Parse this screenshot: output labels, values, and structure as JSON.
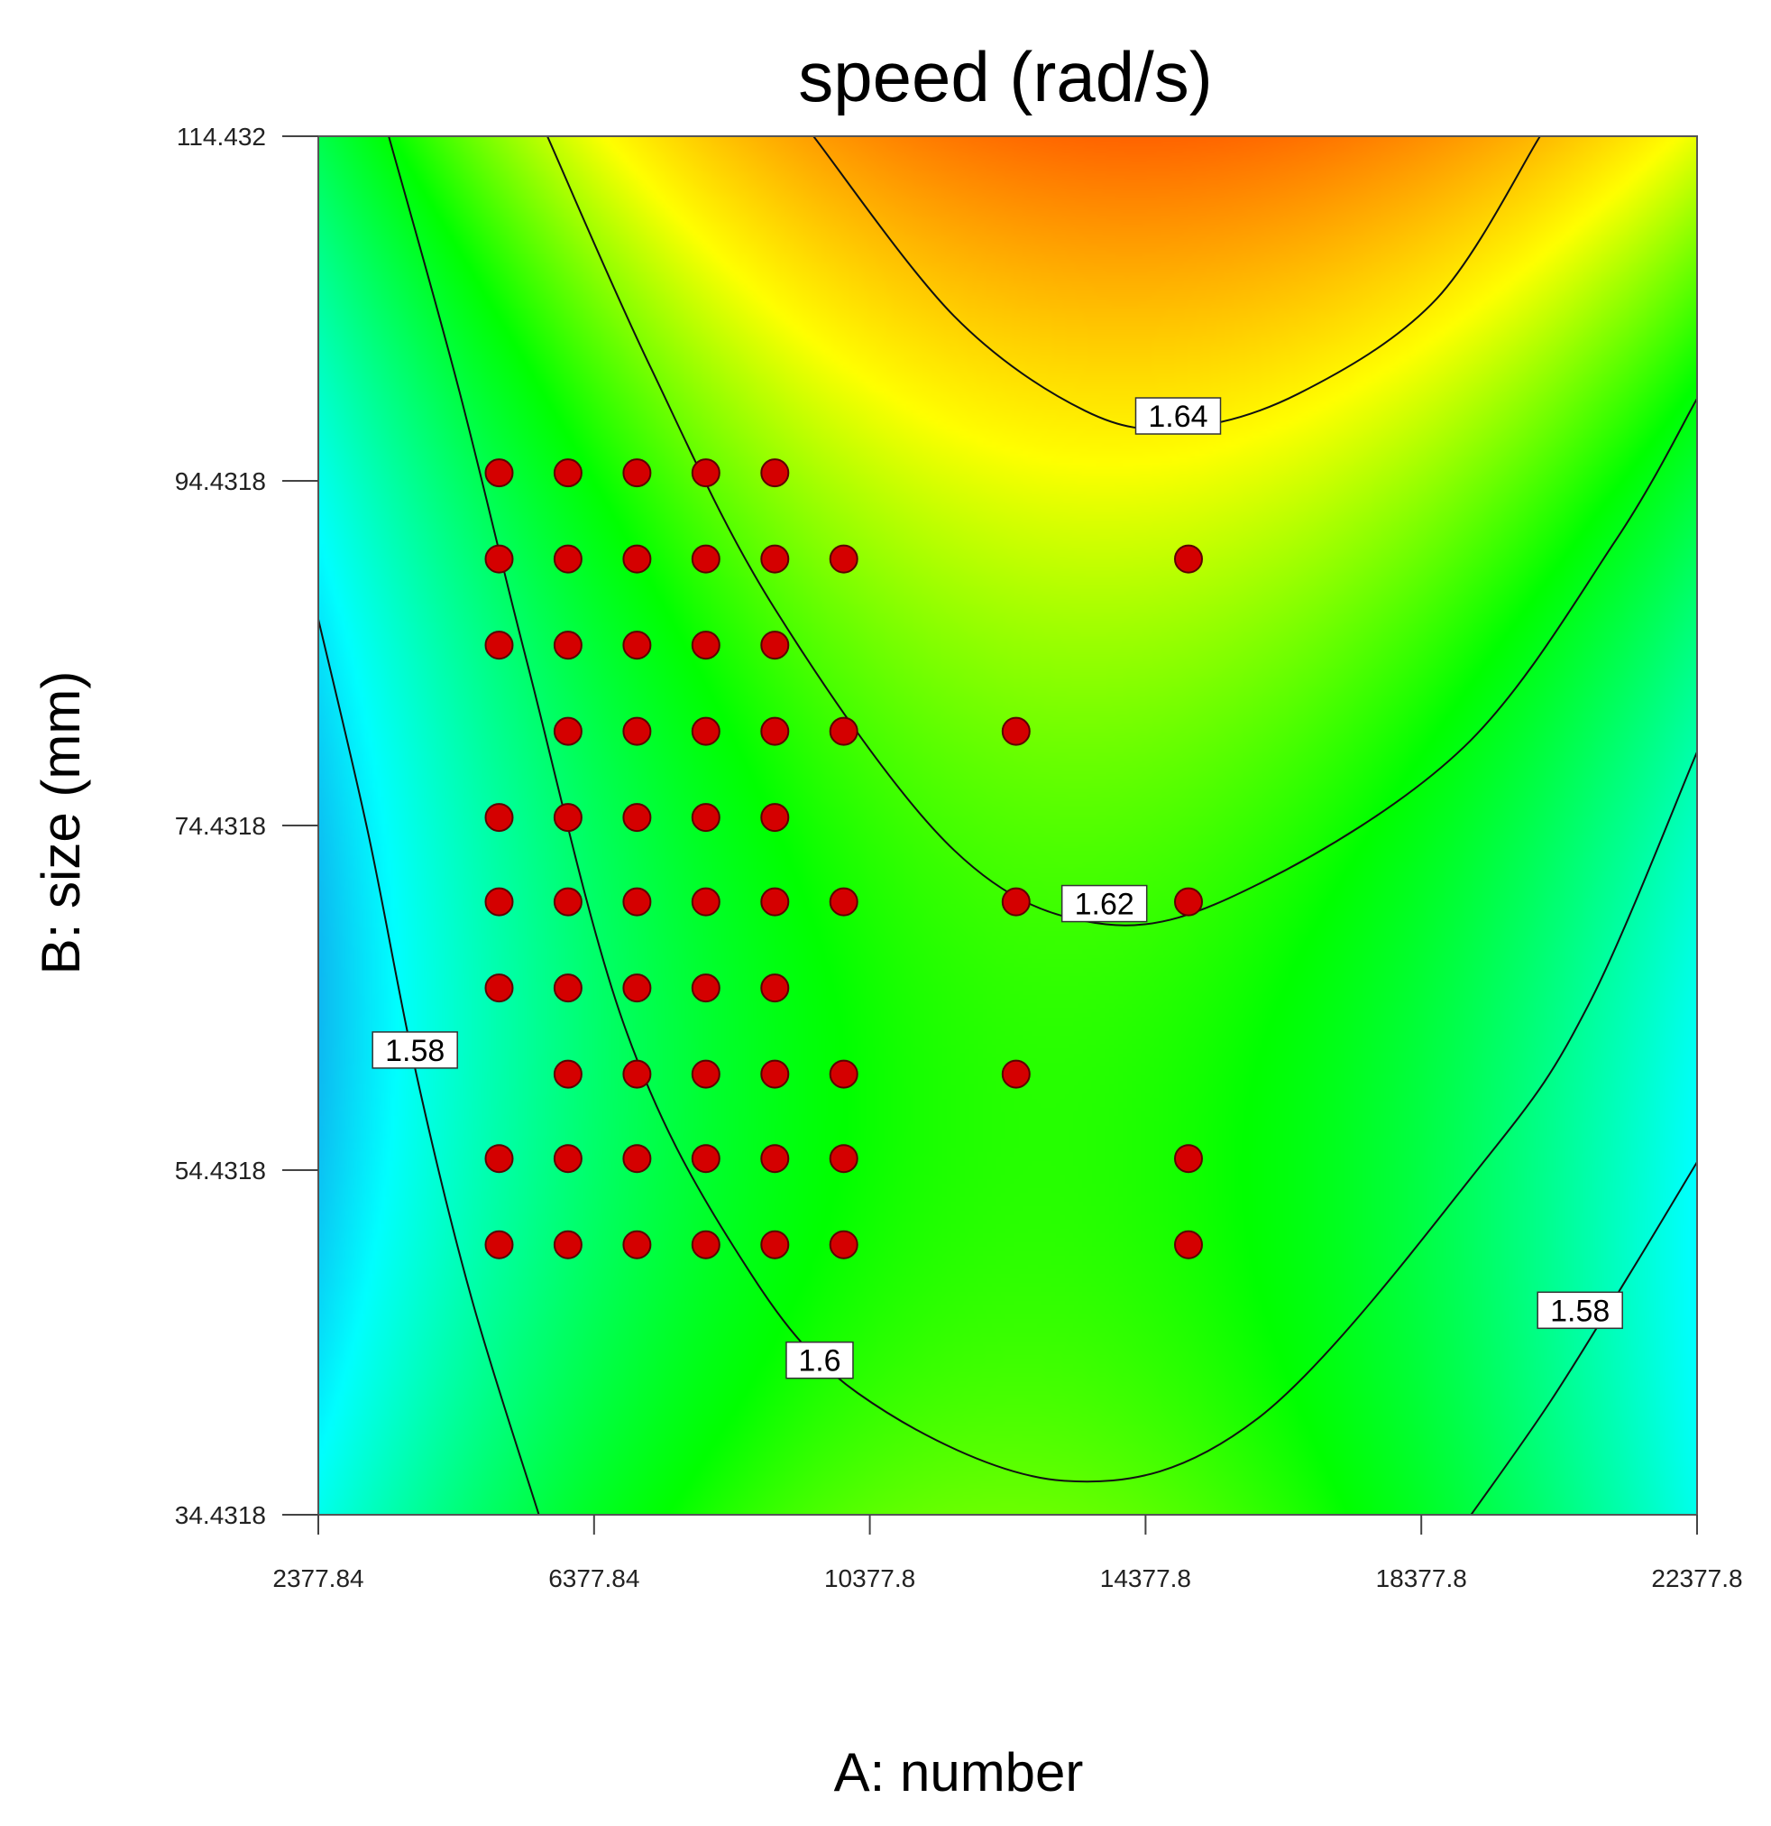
{
  "chart_data": {
    "type": "contour",
    "title": "speed (rad/s)",
    "xlabel": "A: number",
    "ylabel": "B: size (mm)",
    "xlim": [
      2377.84,
      22377.8
    ],
    "ylim": [
      34.4318,
      114.432
    ],
    "x_ticks": [
      "2377.84",
      "6377.84",
      "10377.8",
      "14377.8",
      "18377.8",
      "22377.8"
    ],
    "y_ticks": [
      "34.4318",
      "54.4318",
      "74.4318",
      "94.4318",
      "114.432"
    ],
    "x_tick_values": [
      2377.84,
      6377.84,
      10377.8,
      14377.8,
      18377.8,
      22377.8
    ],
    "y_tick_values": [
      34.4318,
      54.4318,
      74.4318,
      94.4318,
      114.432
    ],
    "color_scale": [
      "#1f5fe0",
      "#00ffff",
      "#00ff00",
      "#ffff00",
      "#ff8800",
      "#ff0000"
    ],
    "grid": false,
    "contours": [
      {
        "label": "1.58",
        "label_at": [
          3780,
          61.4
        ],
        "points": [
          [
            2377.84,
            86.4
          ],
          [
            3100,
            74
          ],
          [
            3800,
            60
          ],
          [
            4600,
            47
          ],
          [
            5577,
            34.4318
          ]
        ]
      },
      {
        "label": "1.58",
        "label_at": [
          20680,
          46.3
        ],
        "points": [
          [
            22377.8,
            54.9
          ],
          [
            21400,
            48.4
          ],
          [
            20250,
            41
          ],
          [
            19100,
            34.4318
          ]
        ]
      },
      {
        "label": "1.6",
        "label_at": [
          9650,
          43.4
        ],
        "points": [
          [
            3400,
            114.432
          ],
          [
            4400,
            100
          ],
          [
            5400,
            84
          ],
          [
            6800,
            63
          ],
          [
            8400,
            50
          ],
          [
            10200,
            41.5
          ],
          [
            13200,
            36.4
          ],
          [
            16000,
            40
          ],
          [
            19300,
            55
          ],
          [
            20800,
            64
          ],
          [
            22377.8,
            78.7
          ]
        ]
      },
      {
        "label": "1.62",
        "label_at": [
          13780,
          69.9
        ],
        "points": [
          [
            5700,
            114.432
          ],
          [
            7200,
            101
          ],
          [
            9000,
            87
          ],
          [
            11600,
            73
          ],
          [
            13800,
            68.7
          ],
          [
            16000,
            71
          ],
          [
            19000,
            79
          ],
          [
            21200,
            91
          ],
          [
            22377.8,
            99.2
          ]
        ]
      },
      {
        "label": "1.64",
        "label_at": [
          14850,
          98.2
        ],
        "points": [
          [
            9560,
            114.432
          ],
          [
            11600,
            104
          ],
          [
            13500,
            98.5
          ],
          [
            14900,
            97.5
          ],
          [
            16600,
            99.5
          ],
          [
            18600,
            105
          ],
          [
            20100,
            114.432
          ]
        ]
      }
    ],
    "design_points": [
      [
        5000,
        94.9
      ],
      [
        6000,
        94.9
      ],
      [
        7000,
        94.9
      ],
      [
        8000,
        94.9
      ],
      [
        9000,
        94.9
      ],
      [
        5000,
        89.9
      ],
      [
        6000,
        89.9
      ],
      [
        7000,
        89.9
      ],
      [
        8000,
        89.9
      ],
      [
        9000,
        89.9
      ],
      [
        10000,
        89.9
      ],
      [
        15000,
        89.9
      ],
      [
        5000,
        84.9
      ],
      [
        6000,
        84.9
      ],
      [
        7000,
        84.9
      ],
      [
        8000,
        84.9
      ],
      [
        9000,
        84.9
      ],
      [
        6000,
        79.9
      ],
      [
        7000,
        79.9
      ],
      [
        8000,
        79.9
      ],
      [
        9000,
        79.9
      ],
      [
        10000,
        79.9
      ],
      [
        12500,
        79.9
      ],
      [
        5000,
        74.9
      ],
      [
        6000,
        74.9
      ],
      [
        7000,
        74.9
      ],
      [
        8000,
        74.9
      ],
      [
        9000,
        74.9
      ],
      [
        5000,
        70.0
      ],
      [
        6000,
        70.0
      ],
      [
        7000,
        70.0
      ],
      [
        8000,
        70.0
      ],
      [
        9000,
        70.0
      ],
      [
        10000,
        70.0
      ],
      [
        12500,
        70.0
      ],
      [
        15000,
        70.0
      ],
      [
        5000,
        65.0
      ],
      [
        6000,
        65.0
      ],
      [
        7000,
        65.0
      ],
      [
        8000,
        65.0
      ],
      [
        9000,
        65.0
      ],
      [
        6000,
        60.0
      ],
      [
        7000,
        60.0
      ],
      [
        8000,
        60.0
      ],
      [
        9000,
        60.0
      ],
      [
        10000,
        60.0
      ],
      [
        12500,
        60.0
      ],
      [
        5000,
        55.1
      ],
      [
        6000,
        55.1
      ],
      [
        7000,
        55.1
      ],
      [
        8000,
        55.1
      ],
      [
        9000,
        55.1
      ],
      [
        10000,
        55.1
      ],
      [
        15000,
        55.1
      ],
      [
        5000,
        50.1
      ],
      [
        6000,
        50.1
      ],
      [
        7000,
        50.1
      ],
      [
        8000,
        50.1
      ],
      [
        9000,
        50.1
      ],
      [
        10000,
        50.1
      ],
      [
        15000,
        50.1
      ]
    ]
  }
}
